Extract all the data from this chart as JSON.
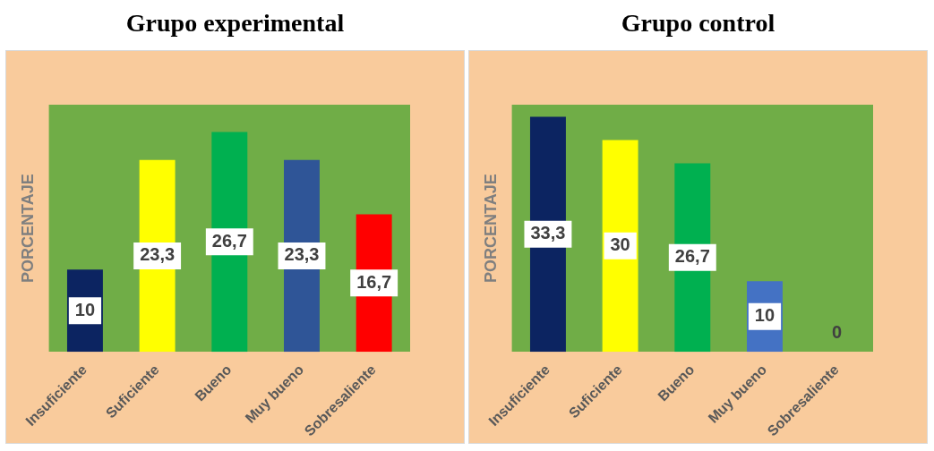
{
  "chart_data": [
    {
      "type": "bar",
      "title": "Grupo experimental",
      "ylabel": "PORCENTAJE",
      "categories": [
        "Insuficiente",
        "Suficiente",
        "Bueno",
        "Muy bueno",
        "Sobresaliente"
      ],
      "values": [
        10,
        23.3,
        26.7,
        23.3,
        16.7
      ],
      "value_labels": [
        "10",
        "23,3",
        "26,7",
        "23,3",
        "16,7"
      ],
      "colors": [
        "#0c2461",
        "#ffff00",
        "#00b050",
        "#2f5597",
        "#ff0000"
      ],
      "grid": false,
      "legend": false,
      "tick_labels": "x"
    },
    {
      "type": "bar",
      "title": "Grupo control",
      "ylabel": "PORCENTAJE",
      "categories": [
        "Insuficiente",
        "Suficiente",
        "Bueno",
        "Muy bueno",
        "Sobresaliente"
      ],
      "values": [
        33.3,
        30,
        26.7,
        10,
        0
      ],
      "value_labels": [
        "33,3",
        "30",
        "26,7",
        "10",
        "0"
      ],
      "colors": [
        "#0c2461",
        "#ffff00",
        "#00b050",
        "#4472c4",
        "#c00000"
      ],
      "grid": false,
      "legend": false,
      "tick_labels": "x"
    }
  ]
}
